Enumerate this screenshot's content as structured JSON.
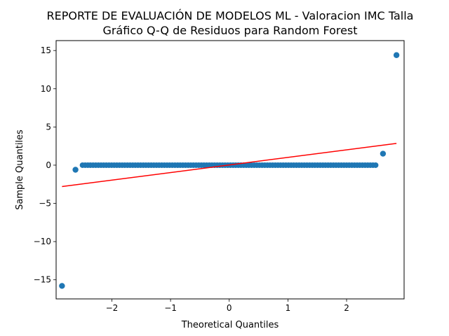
{
  "chart_data": {
    "type": "scatter",
    "title": "REPORTE DE EVALUACIÓN DE MODELOS ML - Valoracion IMC Talla",
    "subtitle": "Gráfico Q-Q de Residuos para Random Forest",
    "xlabel": "Theoretical Quantiles",
    "ylabel": "Sample Quantiles",
    "xlim": [
      -2.95,
      2.98
    ],
    "ylim": [
      -17.5,
      16.3
    ],
    "x_ticks": [
      -2,
      -1,
      0,
      1,
      2
    ],
    "x_tick_labels": [
      "−2",
      "−1",
      "0",
      "1",
      "2"
    ],
    "y_ticks": [
      -15,
      -10,
      -5,
      0,
      5,
      10,
      15
    ],
    "y_tick_labels": [
      "−15",
      "−10",
      "−5",
      "0",
      "5",
      "10",
      "15"
    ],
    "grid": false,
    "legend": "none",
    "series": [
      {
        "kind": "points",
        "color": "#1f77b4",
        "outliers": [
          {
            "x": -2.85,
            "y": -15.8
          },
          {
            "x": -2.62,
            "y": -0.6
          },
          {
            "x": 2.62,
            "y": 1.5
          },
          {
            "x": 2.85,
            "y": 14.4
          }
        ],
        "zero_band": {
          "x_start": -2.5,
          "x_end": 2.5,
          "y": 0.0
        }
      },
      {
        "kind": "reference-line",
        "color": "#ff0000",
        "x": [
          -2.85,
          2.85
        ],
        "y": [
          -2.8,
          2.85
        ]
      }
    ]
  }
}
